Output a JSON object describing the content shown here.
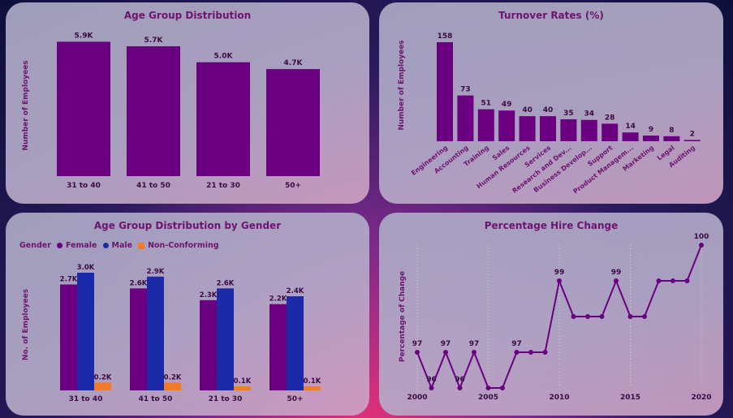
{
  "colors": {
    "primary": "#6a0080",
    "male": "#1a2aa8",
    "nonconforming": "#f07b2a",
    "text": "#6e1470"
  },
  "chart_data": [
    {
      "type": "bar",
      "title": "Age Group Distribution",
      "ylabel": "Number of Employees",
      "xlabel": "",
      "categories": [
        "31 to 40",
        "41 to 50",
        "21 to 30",
        "50+"
      ],
      "values": [
        5900,
        5700,
        5000,
        4700
      ],
      "data_labels": [
        "5.9K",
        "5.7K",
        "5.0K",
        "4.7K"
      ],
      "ylim": [
        0,
        6200
      ]
    },
    {
      "type": "bar",
      "title": "Turnover Rates (%)",
      "ylabel": "Number of Employees",
      "xlabel": "",
      "categories": [
        "Engineering",
        "Accounting",
        "Training",
        "Sales",
        "Human Resources",
        "Services",
        "Research and Dev...",
        "Business Develop...",
        "Support",
        "Product Managem...",
        "Marketing",
        "Legal",
        "Auditing"
      ],
      "values": [
        158,
        73,
        51,
        49,
        40,
        40,
        35,
        34,
        28,
        14,
        9,
        8,
        2
      ],
      "ylim": [
        0,
        165
      ]
    },
    {
      "type": "bar",
      "title": "Age Group Distribution by Gender",
      "ylabel": "No. of Employees",
      "xlabel": "",
      "legend_title": "Gender",
      "legend_position": "top-left",
      "categories": [
        "31 to 40",
        "41 to 50",
        "21 to 30",
        "50+"
      ],
      "series": [
        {
          "name": "Female",
          "values": [
            2700,
            2600,
            2300,
            2200
          ],
          "labels": [
            "2.7K",
            "2.6K",
            "2.3K",
            "2.2K"
          ]
        },
        {
          "name": "Male",
          "values": [
            3000,
            2900,
            2600,
            2400
          ],
          "labels": [
            "3.0K",
            "2.9K",
            "2.6K",
            "2.4K"
          ]
        },
        {
          "name": "Non-Conforming",
          "values": [
            200,
            200,
            100,
            100
          ],
          "labels": [
            "0.2K",
            "0.2K",
            "0.1K",
            "0.1K"
          ]
        }
      ],
      "ylim": [
        0,
        3200
      ]
    },
    {
      "type": "line",
      "title": "Percentage Hire Change",
      "ylabel": "Percentage of Change",
      "xlabel": "",
      "x": [
        2000,
        2001,
        2002,
        2003,
        2004,
        2005,
        2006,
        2007,
        2008,
        2009,
        2010,
        2011,
        2012,
        2013,
        2014,
        2015,
        2016,
        2017,
        2018,
        2019,
        2020
      ],
      "y": [
        97,
        96,
        97,
        96,
        97,
        96,
        96,
        97,
        97,
        97,
        99,
        98,
        98,
        98,
        99,
        98,
        98,
        99,
        99,
        99,
        100
      ],
      "point_labels": [
        {
          "x": 2000,
          "label": "97"
        },
        {
          "x": 2001,
          "label": "96"
        },
        {
          "x": 2002,
          "label": "97"
        },
        {
          "x": 2003,
          "label": "96"
        },
        {
          "x": 2004,
          "label": "97"
        },
        {
          "x": 2007,
          "label": "97"
        },
        {
          "x": 2010,
          "label": "99"
        },
        {
          "x": 2014,
          "label": "99"
        },
        {
          "x": 2020,
          "label": "100"
        }
      ],
      "xticks": [
        2000,
        2005,
        2010,
        2015,
        2020
      ],
      "ylim": [
        96,
        100
      ]
    }
  ]
}
